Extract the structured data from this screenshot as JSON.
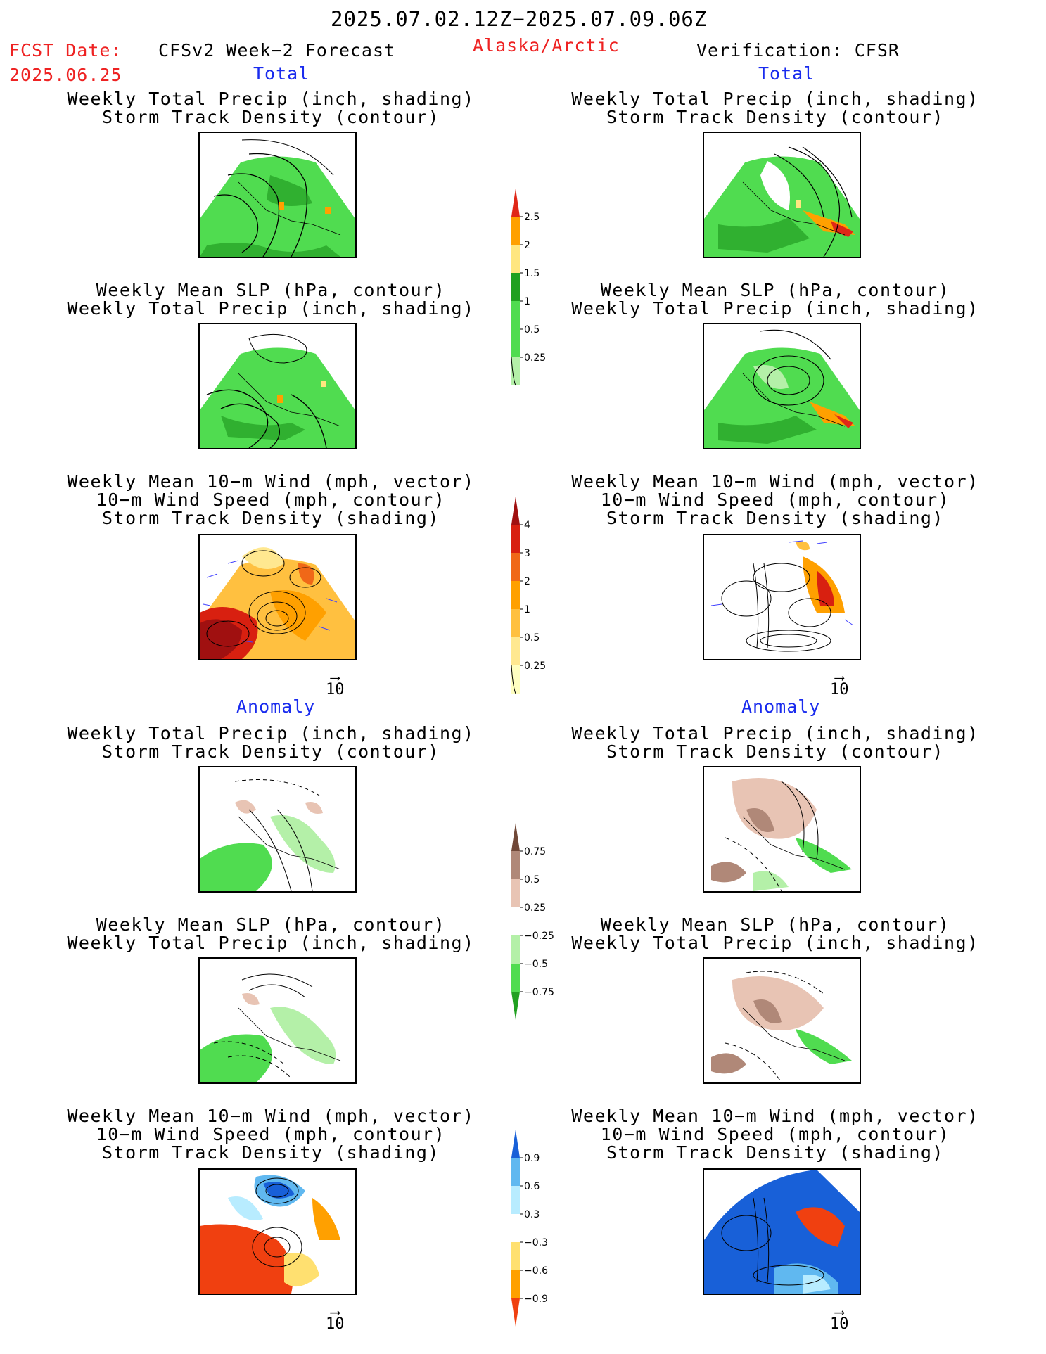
{
  "header": {
    "date_range": "2025.07.02.12Z−2025.07.09.06Z",
    "fcst_label": "FCST Date:",
    "fcst_date": "2025.06.25",
    "forecast_title": "CFSv2 Week−2 Forecast",
    "region": "Alaska/Arctic",
    "verification": "Verification: CFSR"
  },
  "sections": {
    "total_label": "Total",
    "anomaly_label": "Anomaly"
  },
  "panel_titles": {
    "precip_storm": [
      "Weekly Total Precip (inch, shading)",
      "Storm Track Density (contour)"
    ],
    "slp_precip": [
      "Weekly Mean SLP (hPa, contour)",
      "Weekly Total Precip (inch, shading)"
    ],
    "wind_storm": [
      "Weekly Mean 10−m Wind (mph, vector)",
      "10−m Wind Speed (mph, contour)",
      "Storm Track Density (shading)"
    ]
  },
  "vector_reference": "10",
  "colorbars": {
    "precip_total": {
      "labels": [
        "0.25",
        "0.5",
        "1",
        "1.5",
        "2",
        "2.5"
      ],
      "colors": [
        "#b4f0a8",
        "#50dc50",
        "#50dc50",
        "#20a020",
        "#ffe680",
        "#ffa000",
        "#e02818"
      ]
    },
    "storm_total": {
      "labels": [
        "0.25",
        "0.5",
        "1",
        "2",
        "3",
        "4"
      ],
      "colors": [
        "#ffffc0",
        "#ffe890",
        "#ffc040",
        "#ffa000",
        "#f06818",
        "#d82010",
        "#a01010"
      ]
    },
    "precip_anom": {
      "labels": [
        "0.75",
        "0.5",
        "0.25",
        "−0.25",
        "−0.5",
        "−0.75"
      ],
      "colors": [
        "#20a020",
        "#50dc50",
        "#b4f0a8",
        "#ffffff",
        "#e8c4b4",
        "#b08878",
        "#704838"
      ]
    },
    "storm_anom": {
      "labels": [
        "0.9",
        "0.6",
        "0.3",
        "−0.3",
        "−0.6",
        "−0.9"
      ],
      "colors": [
        "#f04010",
        "#ffa000",
        "#ffe070",
        "#ffffff",
        "#b8ecff",
        "#60b8f0",
        "#1860d8"
      ]
    }
  }
}
